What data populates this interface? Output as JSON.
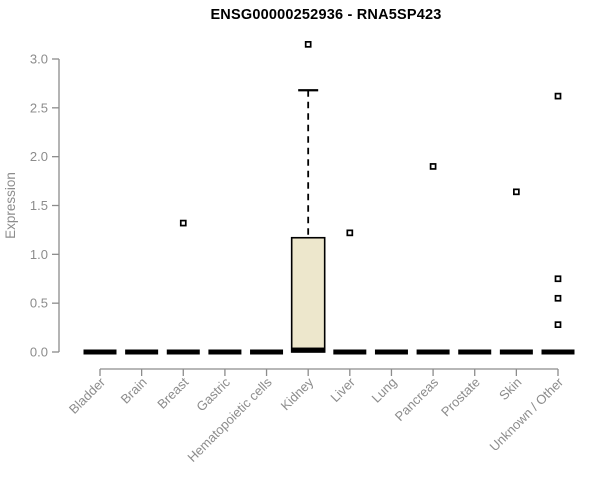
{
  "chart_data": {
    "type": "boxplot",
    "title": "ENSG00000252936 - RNA5SP423",
    "ylabel": "Expression",
    "xlabel": "",
    "ylim": [
      0,
      3.0
    ],
    "yticks": [
      0.0,
      0.5,
      1.0,
      1.5,
      2.0,
      2.5,
      3.0
    ],
    "grid": false,
    "legend": null,
    "categories": [
      "Bladder",
      "Brain",
      "Breast",
      "Gastric",
      "Hematopoietic cells",
      "Kidney",
      "Liver",
      "Lung",
      "Pancreas",
      "Prostate",
      "Skin",
      "Unknown / Other"
    ],
    "boxes": [
      {
        "category": "Bladder",
        "q1": 0,
        "median": 0,
        "q3": 0,
        "whisker_low": 0,
        "whisker_high": 0,
        "outliers": []
      },
      {
        "category": "Brain",
        "q1": 0,
        "median": 0,
        "q3": 0,
        "whisker_low": 0,
        "whisker_high": 0,
        "outliers": []
      },
      {
        "category": "Breast",
        "q1": 0,
        "median": 0,
        "q3": 0,
        "whisker_low": 0,
        "whisker_high": 0,
        "outliers": [
          1.32
        ]
      },
      {
        "category": "Gastric",
        "q1": 0,
        "median": 0,
        "q3": 0,
        "whisker_low": 0,
        "whisker_high": 0,
        "outliers": []
      },
      {
        "category": "Hematopoietic cells",
        "q1": 0,
        "median": 0,
        "q3": 0,
        "whisker_low": 0,
        "whisker_high": 0,
        "outliers": []
      },
      {
        "category": "Kidney",
        "q1": 0,
        "median": 0.02,
        "q3": 1.17,
        "whisker_low": 0,
        "whisker_high": 2.68,
        "outliers": [
          3.15
        ]
      },
      {
        "category": "Liver",
        "q1": 0,
        "median": 0,
        "q3": 0,
        "whisker_low": 0,
        "whisker_high": 0,
        "outliers": [
          1.22
        ]
      },
      {
        "category": "Lung",
        "q1": 0,
        "median": 0,
        "q3": 0,
        "whisker_low": 0,
        "whisker_high": 0,
        "outliers": []
      },
      {
        "category": "Pancreas",
        "q1": 0,
        "median": 0,
        "q3": 0,
        "whisker_low": 0,
        "whisker_high": 0,
        "outliers": [
          1.9
        ]
      },
      {
        "category": "Prostate",
        "q1": 0,
        "median": 0,
        "q3": 0,
        "whisker_low": 0,
        "whisker_high": 0,
        "outliers": []
      },
      {
        "category": "Skin",
        "q1": 0,
        "median": 0,
        "q3": 0,
        "whisker_low": 0,
        "whisker_high": 0,
        "outliers": [
          1.64
        ]
      },
      {
        "category": "Unknown / Other",
        "q1": 0,
        "median": 0,
        "q3": 0,
        "whisker_low": 0,
        "whisker_high": 0,
        "outliers": [
          2.62,
          0.75,
          0.55,
          0.28
        ]
      }
    ],
    "colors": {
      "box_fill": "#EDE7CC",
      "box_border": "#000000",
      "whisker": "#000000",
      "outlier_fill": "#FFFFFF",
      "axis": "#8C8C8C",
      "tick_label": "#8C8C8C",
      "title": "#000000",
      "background": "#FFFFFF"
    }
  }
}
